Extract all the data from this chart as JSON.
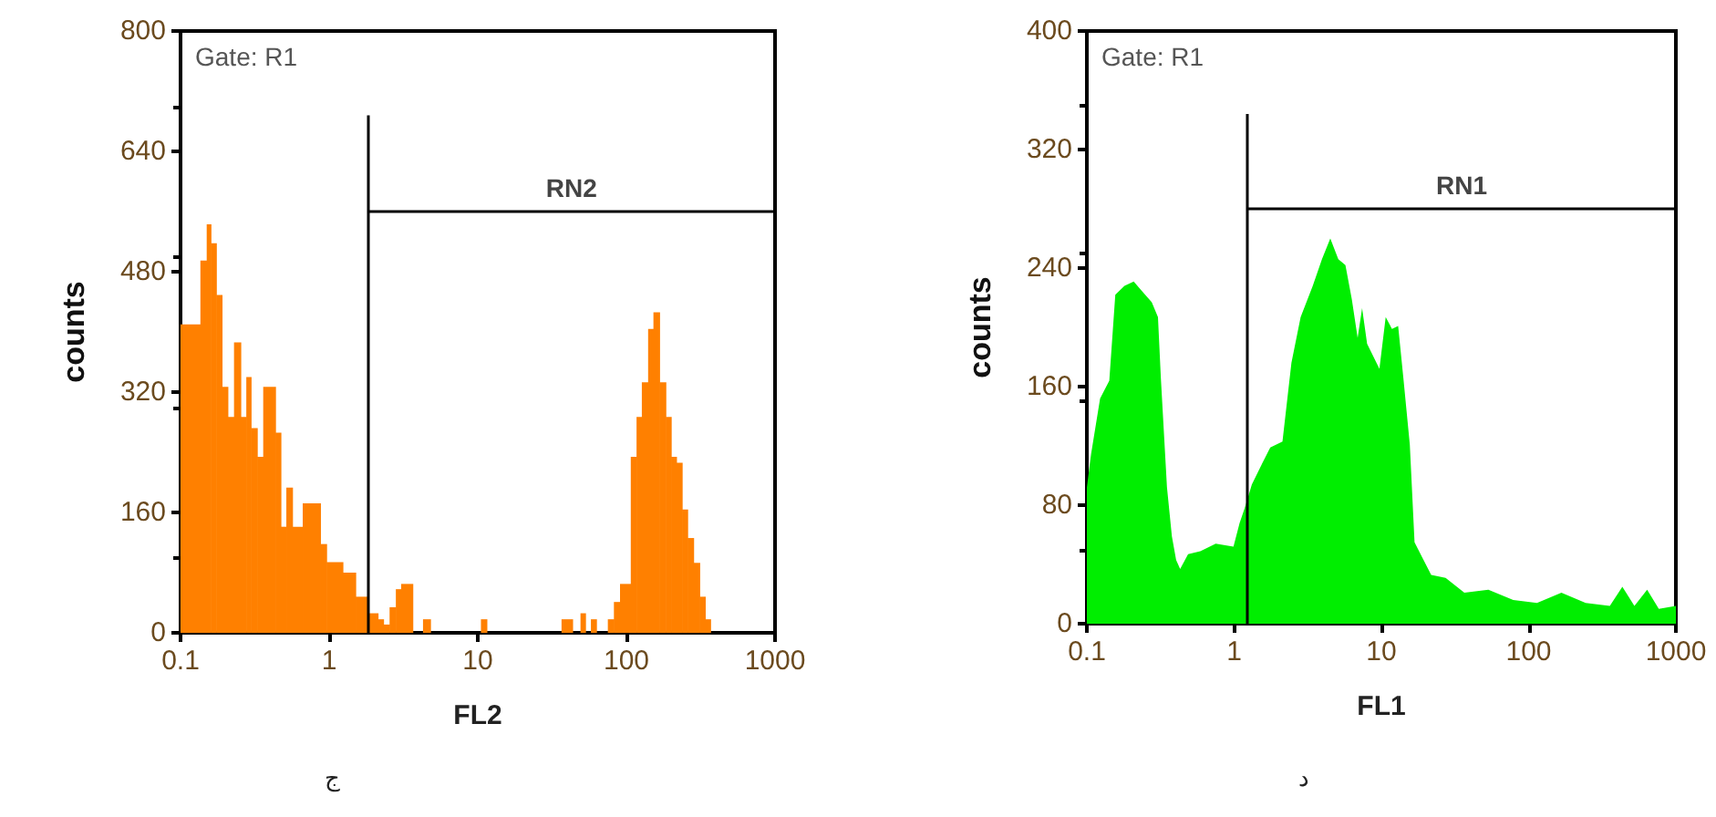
{
  "chart_data": [
    {
      "type": "histogram",
      "xlabel": "FL2",
      "ylabel": "counts",
      "annotations": [
        "Gate: R1",
        "ج"
      ],
      "color": "#ff8000",
      "log": "x",
      "bins": [
        0.1,
        0.136,
        0.15,
        0.16,
        0.174,
        0.19,
        0.208,
        0.229,
        0.254,
        0.277,
        0.298,
        0.328,
        0.36,
        0.435,
        0.473,
        0.515,
        0.566,
        0.664,
        0.873,
        0.96,
        1.236,
        1.507,
        1.82,
        2.13,
        2.32,
        2.55,
        2.81,
        3.05,
        3.65,
        4.28,
        4.8,
        10.5,
        11.5,
        36.6,
        43.4,
        49.1,
        53,
        57.7,
        62.8,
        75,
        82.4,
        90.6,
        107,
        117,
        127,
        140,
        152,
        167,
        184,
        200,
        217,
        237,
        258,
        283,
        311,
        339,
        368
      ],
      "values": [
        410,
        495,
        543,
        518,
        449,
        327,
        287,
        386,
        287,
        340,
        272,
        234,
        327,
        266,
        141,
        193,
        141,
        172,
        118,
        94,
        80,
        48,
        26,
        18,
        11,
        34,
        58,
        65,
        0,
        18,
        0,
        18,
        0,
        18,
        0,
        26,
        0,
        18,
        0,
        18,
        41,
        65,
        234,
        287,
        333,
        404,
        426,
        333,
        287,
        234,
        226,
        164,
        126,
        93,
        48,
        18
      ],
      "xlim": [
        0.1,
        1000
      ],
      "xticks": [
        0.1,
        1,
        10,
        100,
        1000
      ],
      "ylim": [
        0,
        800
      ],
      "yticks": [
        0,
        160,
        320,
        480,
        640,
        800
      ],
      "series": [
        {
          "type": "line",
          "name": "RN2",
          "color": "#000000",
          "x": [
            1.82,
            1000
          ],
          "values": [
            560,
            560
          ]
        }
      ],
      "ref_lines": [
        {
          "axis": "x",
          "value": 1.82
        }
      ]
    },
    {
      "type": "area",
      "xlabel": "FL1",
      "ylabel": "counts",
      "annotations": [
        "Gate: R1",
        "د"
      ],
      "log": "x",
      "x": [
        0.1,
        0.107,
        0.123,
        0.142,
        0.156,
        0.18,
        0.208,
        0.239,
        0.276,
        0.304,
        0.318,
        0.35,
        0.378,
        0.404,
        0.43,
        0.487,
        0.59,
        0.75,
        0.99,
        1.09,
        1.18,
        1.32,
        1.53,
        1.76,
        2.13,
        2.45,
        2.83,
        3.42,
        3.95,
        4.5,
        5.1,
        5.7,
        6.3,
        6.9,
        7.4,
        8.0,
        9.7,
        10.7,
        11.8,
        13.0,
        14.1,
        15.6,
        16.8,
        18.9,
        21.8,
        27.3,
        36.6,
        53.3,
        78.6,
        114,
        167,
        244,
        356,
        433,
        523,
        638,
        766,
        1000
      ],
      "series": [
        {
          "type": "line",
          "name": "RN1",
          "color": "#000000",
          "x": [
            1.23,
            1000
          ],
          "values": [
            280,
            280
          ]
        },
        {
          "color": "#00ee00",
          "values": [
            92,
            115,
            152,
            164,
            222,
            228,
            231,
            224,
            217,
            207,
            166,
            92,
            59,
            43,
            37,
            47,
            49,
            54,
            52,
            68,
            78,
            94,
            107,
            119,
            123,
            176,
            207,
            228,
            246,
            260,
            246,
            242,
            219,
            193,
            213,
            189,
            172,
            207,
            199,
            201,
            166,
            121,
            55,
            45,
            33,
            31,
            21,
            23,
            16,
            14,
            21,
            14,
            12,
            25,
            12,
            23,
            10,
            12
          ]
        }
      ],
      "xlim": [
        0.1,
        1000
      ],
      "xticks": [
        0.1,
        1,
        10,
        100,
        1000
      ],
      "ylim": [
        0,
        400
      ],
      "yticks": [
        0,
        80,
        160,
        240,
        320,
        400
      ],
      "ref_lines": [
        {
          "axis": "x",
          "value": 1.23
        }
      ]
    }
  ]
}
